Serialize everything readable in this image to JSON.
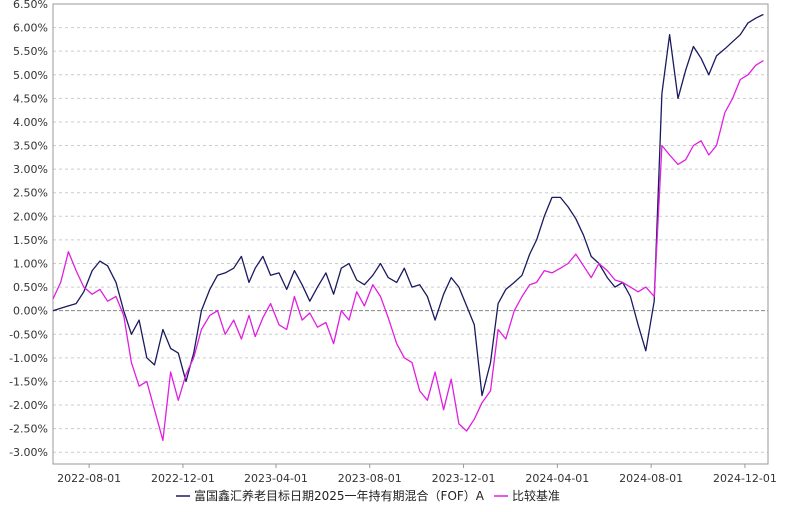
{
  "chart_data": {
    "type": "line",
    "ylim": [
      -3.25,
      6.5
    ],
    "y_ticks": [
      "6.50%",
      "6.00%",
      "5.50%",
      "5.00%",
      "4.50%",
      "4.00%",
      "3.50%",
      "3.00%",
      "2.50%",
      "2.00%",
      "1.50%",
      "1.00%",
      "0.50%",
      "0.00%",
      "-0.50%",
      "-1.00%",
      "-1.50%",
      "-2.00%",
      "-2.50%",
      "-3.00%"
    ],
    "y_tick_values": [
      6.5,
      6.0,
      5.5,
      5.0,
      4.5,
      4.0,
      3.5,
      3.0,
      2.5,
      2.0,
      1.5,
      1.0,
      0.5,
      0.0,
      -0.5,
      -1.0,
      -1.5,
      -2.0,
      -2.5,
      -3.0
    ],
    "x_range": [
      "2022-06-15",
      "2024-12-31"
    ],
    "x_ticks": [
      "2022-08-01",
      "2022-12-01",
      "2023-04-01",
      "2023-08-01",
      "2023-12-01",
      "2024-04-01",
      "2024-08-01",
      "2024-12-01"
    ],
    "grid": true,
    "legend_position": "bottom",
    "series": [
      {
        "name": "富国鑫汇养老目标日期2025一年持有期混合（FOF）A",
        "color": "#1a1a5e",
        "x": [
          "2022-06-15",
          "2022-06-25",
          "2022-07-05",
          "2022-07-15",
          "2022-07-25",
          "2022-08-05",
          "2022-08-15",
          "2022-08-25",
          "2022-09-05",
          "2022-09-15",
          "2022-09-25",
          "2022-10-05",
          "2022-10-15",
          "2022-10-25",
          "2022-11-05",
          "2022-11-15",
          "2022-11-25",
          "2022-12-05",
          "2022-12-15",
          "2022-12-25",
          "2023-01-05",
          "2023-01-15",
          "2023-01-25",
          "2023-02-05",
          "2023-02-15",
          "2023-02-25",
          "2023-03-05",
          "2023-03-15",
          "2023-03-25",
          "2023-04-05",
          "2023-04-15",
          "2023-04-25",
          "2023-05-05",
          "2023-05-15",
          "2023-05-25",
          "2023-06-05",
          "2023-06-15",
          "2023-06-25",
          "2023-07-05",
          "2023-07-15",
          "2023-07-25",
          "2023-08-05",
          "2023-08-15",
          "2023-08-25",
          "2023-09-05",
          "2023-09-15",
          "2023-09-25",
          "2023-10-05",
          "2023-10-15",
          "2023-10-25",
          "2023-11-05",
          "2023-11-15",
          "2023-11-25",
          "2023-12-05",
          "2023-12-15",
          "2023-12-25",
          "2024-01-05",
          "2024-01-15",
          "2024-01-25",
          "2024-02-05",
          "2024-02-15",
          "2024-02-25",
          "2024-03-05",
          "2024-03-15",
          "2024-03-25",
          "2024-04-05",
          "2024-04-15",
          "2024-04-25",
          "2024-05-05",
          "2024-05-15",
          "2024-05-25",
          "2024-06-05",
          "2024-06-15",
          "2024-06-25",
          "2024-07-05",
          "2024-07-15",
          "2024-07-25",
          "2024-08-05",
          "2024-08-15",
          "2024-08-25",
          "2024-09-05",
          "2024-09-15",
          "2024-09-25",
          "2024-10-05",
          "2024-10-15",
          "2024-10-25",
          "2024-11-05",
          "2024-11-15",
          "2024-11-25",
          "2024-12-05",
          "2024-12-15",
          "2024-12-25"
        ],
        "y": [
          0.0,
          0.05,
          0.1,
          0.15,
          0.4,
          0.85,
          1.05,
          0.95,
          0.6,
          0.0,
          -0.5,
          -0.2,
          -1.0,
          -1.15,
          -0.4,
          -0.8,
          -0.9,
          -1.5,
          -0.9,
          0.0,
          0.45,
          0.75,
          0.8,
          0.9,
          1.15,
          0.6,
          0.9,
          1.15,
          0.75,
          0.8,
          0.45,
          0.85,
          0.55,
          0.2,
          0.5,
          0.8,
          0.35,
          0.9,
          1.0,
          0.65,
          0.55,
          0.75,
          1.0,
          0.7,
          0.6,
          0.9,
          0.5,
          0.55,
          0.3,
          -0.2,
          0.35,
          0.7,
          0.5,
          0.1,
          -0.3,
          -1.8,
          -1.1,
          0.15,
          0.45,
          0.6,
          0.75,
          1.2,
          1.5,
          2.0,
          2.4,
          2.4,
          2.2,
          1.95,
          1.6,
          1.15,
          1.0,
          0.7,
          0.5,
          0.6,
          0.3,
          -0.3,
          -0.85,
          0.2,
          4.6,
          5.85,
          4.5,
          5.1,
          5.6,
          5.35,
          5.0,
          5.4,
          5.55,
          5.7,
          5.85,
          6.1,
          6.2,
          6.28
        ]
      },
      {
        "name": "比较基准",
        "color": "#e01fe0",
        "x": [
          "2022-06-15",
          "2022-06-25",
          "2022-07-05",
          "2022-07-15",
          "2022-07-25",
          "2022-08-05",
          "2022-08-15",
          "2022-08-25",
          "2022-09-05",
          "2022-09-15",
          "2022-09-25",
          "2022-10-05",
          "2022-10-15",
          "2022-10-25",
          "2022-11-05",
          "2022-11-15",
          "2022-11-25",
          "2022-12-05",
          "2022-12-15",
          "2022-12-25",
          "2023-01-05",
          "2023-01-15",
          "2023-01-25",
          "2023-02-05",
          "2023-02-15",
          "2023-02-25",
          "2023-03-05",
          "2023-03-15",
          "2023-03-25",
          "2023-04-05",
          "2023-04-15",
          "2023-04-25",
          "2023-05-05",
          "2023-05-15",
          "2023-05-25",
          "2023-06-05",
          "2023-06-15",
          "2023-06-25",
          "2023-07-05",
          "2023-07-15",
          "2023-07-25",
          "2023-08-05",
          "2023-08-15",
          "2023-08-25",
          "2023-09-05",
          "2023-09-15",
          "2023-09-25",
          "2023-10-05",
          "2023-10-15",
          "2023-10-25",
          "2023-11-05",
          "2023-11-15",
          "2023-11-25",
          "2023-12-05",
          "2023-12-15",
          "2023-12-25",
          "2024-01-05",
          "2024-01-15",
          "2024-01-25",
          "2024-02-05",
          "2024-02-15",
          "2024-02-25",
          "2024-03-05",
          "2024-03-15",
          "2024-03-25",
          "2024-04-05",
          "2024-04-15",
          "2024-04-25",
          "2024-05-05",
          "2024-05-15",
          "2024-05-25",
          "2024-06-05",
          "2024-06-15",
          "2024-06-25",
          "2024-07-05",
          "2024-07-15",
          "2024-07-25",
          "2024-08-05",
          "2024-08-15",
          "2024-08-25",
          "2024-09-05",
          "2024-09-15",
          "2024-09-25",
          "2024-10-05",
          "2024-10-15",
          "2024-10-25",
          "2024-11-05",
          "2024-11-15",
          "2024-11-25",
          "2024-12-05",
          "2024-12-15",
          "2024-12-25"
        ],
        "y": [
          0.25,
          0.6,
          1.25,
          0.85,
          0.5,
          0.35,
          0.45,
          0.2,
          0.3,
          -0.1,
          -1.1,
          -1.6,
          -1.5,
          -2.1,
          -2.75,
          -1.3,
          -1.9,
          -1.35,
          -1.0,
          -0.4,
          -0.1,
          0.0,
          -0.5,
          -0.2,
          -0.6,
          -0.1,
          -0.55,
          -0.15,
          0.15,
          -0.3,
          -0.4,
          0.3,
          -0.2,
          -0.05,
          -0.35,
          -0.25,
          -0.7,
          0.0,
          -0.2,
          0.4,
          0.1,
          0.55,
          0.3,
          -0.15,
          -0.7,
          -1.0,
          -1.1,
          -1.7,
          -1.9,
          -1.3,
          -2.1,
          -1.45,
          -2.4,
          -2.55,
          -2.3,
          -1.95,
          -1.7,
          -0.4,
          -0.6,
          0.0,
          0.3,
          0.55,
          0.6,
          0.85,
          0.8,
          0.9,
          1.0,
          1.2,
          0.95,
          0.7,
          1.0,
          0.85,
          0.65,
          0.6,
          0.5,
          0.4,
          0.5,
          0.3,
          3.5,
          3.3,
          3.1,
          3.2,
          3.5,
          3.6,
          3.3,
          3.5,
          4.2,
          4.5,
          4.9,
          5.0,
          5.2,
          5.3
        ]
      }
    ]
  }
}
